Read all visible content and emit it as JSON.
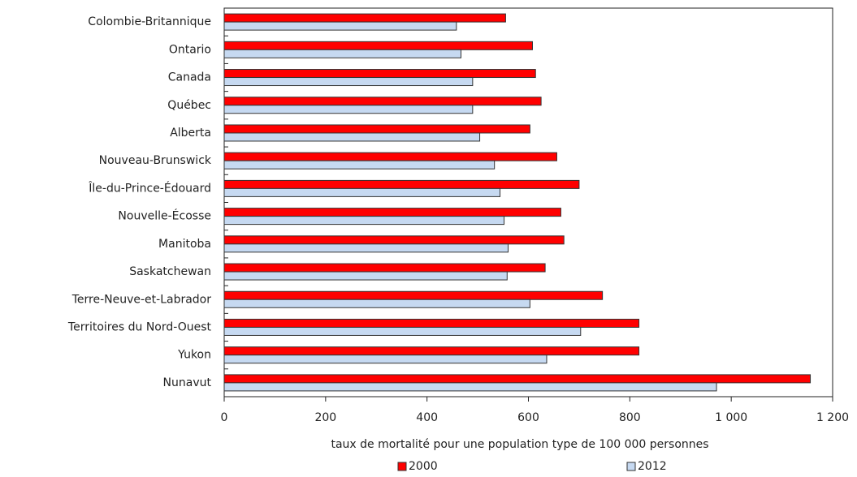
{
  "chart_data": {
    "type": "hbar",
    "categories": [
      "Colombie-Britannique",
      "Ontario",
      "Canada",
      "Québec",
      "Alberta",
      "Nouveau-Brunswick",
      "Île-du-Prince-Édouard",
      "Nouvelle-Écosse",
      "Manitoba",
      "Saskatchewan",
      "Terre-Neuve-et-Labrador",
      "Territoires du Nord-Ouest",
      "Yukon",
      "Nunavut"
    ],
    "series": [
      {
        "name": "2000",
        "color": "#ff0000",
        "values": [
          555,
          608,
          614,
          625,
          603,
          656,
          700,
          664,
          670,
          633,
          746,
          818,
          818,
          1156
        ]
      },
      {
        "name": "2012",
        "color": "#c6d9f1",
        "values": [
          458,
          467,
          490,
          490,
          504,
          533,
          544,
          552,
          560,
          558,
          603,
          703,
          636,
          971
        ]
      }
    ],
    "x_label": "taux de mortalité pour une population type de 100 000 personnes",
    "xlim": [
      0,
      1200
    ],
    "xticks": [
      0,
      200,
      400,
      600,
      800,
      {
        "value": 1000,
        "label": "1 000"
      },
      {
        "value": 1200,
        "label": "1 200"
      }
    ],
    "legend": "bottom"
  }
}
